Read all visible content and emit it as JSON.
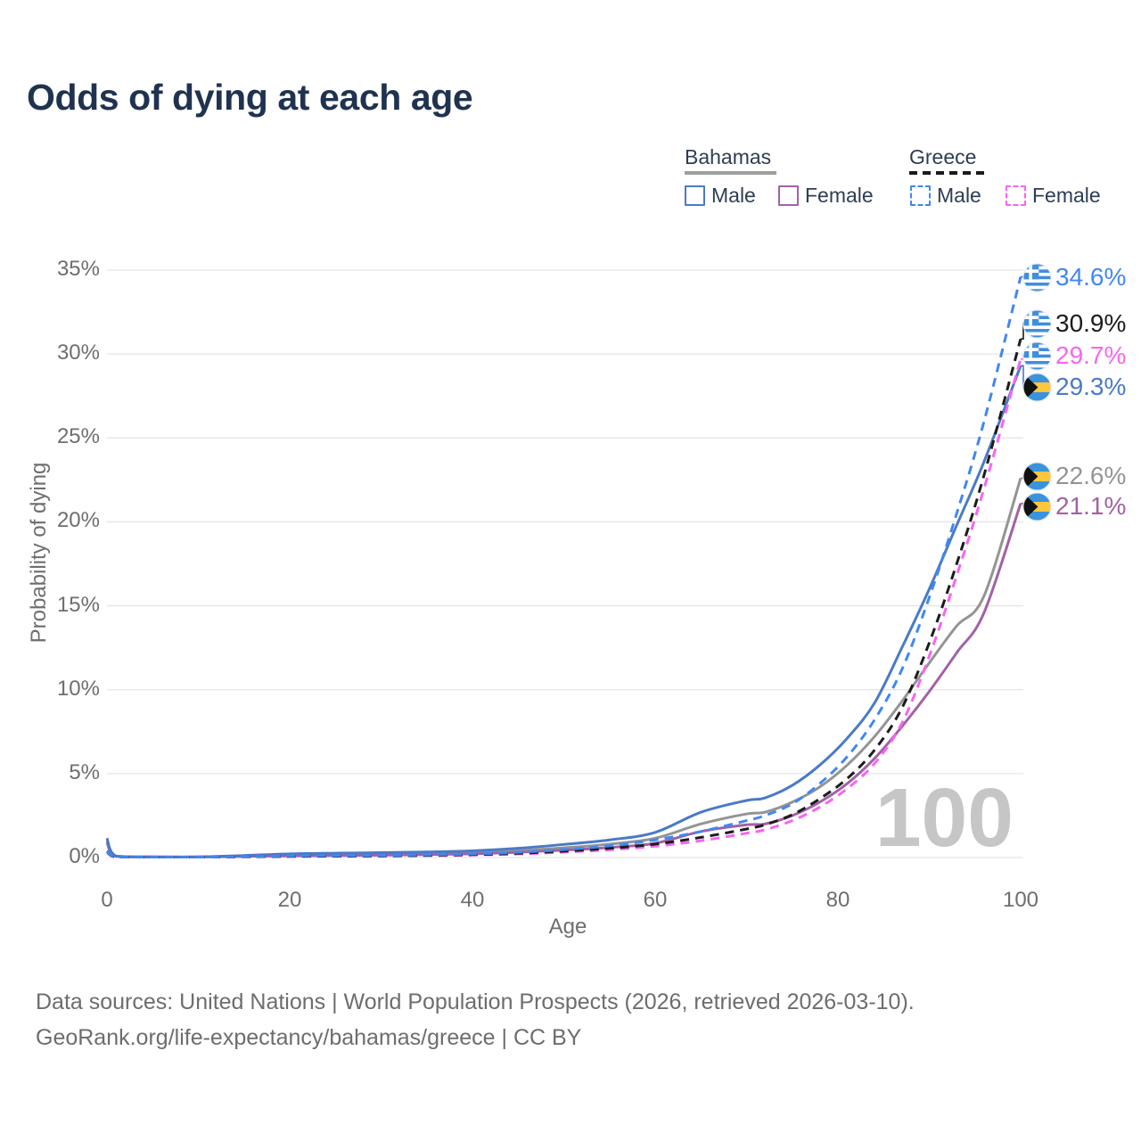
{
  "title": "Odds of dying at each age",
  "watermark": "100",
  "legend": {
    "groups": [
      {
        "name": "Bahamas",
        "line_style": "solid",
        "underline_color": "#9e9e9e",
        "items": [
          {
            "label": "Male",
            "color": "#4a7ac7"
          },
          {
            "label": "Female",
            "color": "#a261a6"
          }
        ]
      },
      {
        "name": "Greece",
        "line_style": "dashed",
        "underline_color": "#1a1a1a",
        "items": [
          {
            "label": "Male",
            "color": "#4187f2"
          },
          {
            "label": "Female",
            "color": "#f765f3"
          }
        ]
      }
    ]
  },
  "y_axis": {
    "label": "Probability of dying",
    "ticks": [
      {
        "label": "0%",
        "pct": 0
      },
      {
        "label": "5%",
        "pct": 5
      },
      {
        "label": "10%",
        "pct": 10
      },
      {
        "label": "15%",
        "pct": 15
      },
      {
        "label": "20%",
        "pct": 20
      },
      {
        "label": "25%",
        "pct": 25
      },
      {
        "label": "30%",
        "pct": 30
      },
      {
        "label": "35%",
        "pct": 35
      }
    ]
  },
  "x_axis": {
    "label": "Age",
    "ticks": [
      {
        "label": "0",
        "age": 0
      },
      {
        "label": "20",
        "age": 20
      },
      {
        "label": "40",
        "age": 40
      },
      {
        "label": "60",
        "age": 60
      },
      {
        "label": "80",
        "age": 80
      },
      {
        "label": "100",
        "age": 100
      }
    ]
  },
  "footer": {
    "line1": "Data sources: United Nations | World Population Prospects (2026, retrieved 2026-03-10).",
    "line2": "GeoRank.org/life-expectancy/bahamas/greece | CC BY"
  },
  "chart_data": {
    "type": "line",
    "title": "Odds of dying at each age",
    "xlabel": "Age",
    "ylabel": "Probability of dying",
    "xlim": [
      0,
      100
    ],
    "ylim_pct": [
      0,
      35
    ],
    "grid": "horizontal",
    "legend_position": "top-right",
    "series": [
      {
        "id": "bahamas_total",
        "name": "Bahamas (both sexes)",
        "country": "Bahamas",
        "sex": "total",
        "color": "#949494",
        "dash": false,
        "flag": "bahamas",
        "end_label": "22.6%",
        "end_value_pct": 22.6,
        "points": [
          [
            0,
            1.0
          ],
          [
            1,
            0.08
          ],
          [
            5,
            0.04
          ],
          [
            10,
            0.04
          ],
          [
            15,
            0.09
          ],
          [
            20,
            0.16
          ],
          [
            25,
            0.19
          ],
          [
            30,
            0.21
          ],
          [
            35,
            0.24
          ],
          [
            40,
            0.3
          ],
          [
            45,
            0.42
          ],
          [
            50,
            0.58
          ],
          [
            55,
            0.8
          ],
          [
            60,
            1.15
          ],
          [
            65,
            2.0
          ],
          [
            70,
            2.6
          ],
          [
            72,
            2.7
          ],
          [
            75,
            3.3
          ],
          [
            78,
            4.2
          ],
          [
            81,
            5.5
          ],
          [
            84,
            7.2
          ],
          [
            87,
            9.3
          ],
          [
            90,
            11.6
          ],
          [
            93,
            13.8
          ],
          [
            96,
            15.6
          ],
          [
            100,
            22.6
          ]
        ]
      },
      {
        "id": "bahamas_female",
        "name": "Bahamas — Female",
        "country": "Bahamas",
        "sex": "female",
        "color": "#a261a6",
        "dash": false,
        "flag": "bahamas",
        "end_label": "21.1%",
        "end_value_pct": 21.1,
        "points": [
          [
            0,
            0.9
          ],
          [
            1,
            0.07
          ],
          [
            5,
            0.03
          ],
          [
            10,
            0.03
          ],
          [
            15,
            0.07
          ],
          [
            20,
            0.1
          ],
          [
            25,
            0.12
          ],
          [
            30,
            0.14
          ],
          [
            35,
            0.17
          ],
          [
            40,
            0.22
          ],
          [
            45,
            0.31
          ],
          [
            50,
            0.44
          ],
          [
            55,
            0.6
          ],
          [
            60,
            0.85
          ],
          [
            65,
            1.55
          ],
          [
            70,
            1.95
          ],
          [
            72,
            2.0
          ],
          [
            75,
            2.5
          ],
          [
            78,
            3.3
          ],
          [
            81,
            4.4
          ],
          [
            84,
            5.9
          ],
          [
            87,
            7.8
          ],
          [
            90,
            9.9
          ],
          [
            93,
            12.2
          ],
          [
            96,
            14.6
          ],
          [
            100,
            21.1
          ]
        ]
      },
      {
        "id": "bahamas_male",
        "name": "Bahamas — Male",
        "country": "Bahamas",
        "sex": "male",
        "color": "#4a7ac7",
        "dash": false,
        "flag": "bahamas",
        "end_label": "29.3%",
        "end_value_pct": 29.3,
        "points": [
          [
            0,
            1.15
          ],
          [
            1,
            0.09
          ],
          [
            5,
            0.04
          ],
          [
            10,
            0.04
          ],
          [
            15,
            0.12
          ],
          [
            20,
            0.22
          ],
          [
            25,
            0.26
          ],
          [
            30,
            0.29
          ],
          [
            35,
            0.33
          ],
          [
            40,
            0.4
          ],
          [
            45,
            0.55
          ],
          [
            50,
            0.78
          ],
          [
            55,
            1.05
          ],
          [
            60,
            1.5
          ],
          [
            65,
            2.7
          ],
          [
            70,
            3.4
          ],
          [
            72,
            3.55
          ],
          [
            75,
            4.3
          ],
          [
            78,
            5.5
          ],
          [
            81,
            7.1
          ],
          [
            84,
            9.2
          ],
          [
            87,
            12.5
          ],
          [
            90,
            16.0
          ],
          [
            93,
            19.8
          ],
          [
            96,
            23.6
          ],
          [
            100,
            29.3
          ]
        ]
      },
      {
        "id": "greece_female",
        "name": "Greece — Female",
        "country": "Greece",
        "sex": "female",
        "color": "#f765f3",
        "dash": true,
        "flag": "greece",
        "end_label": "29.7%",
        "end_value_pct": 29.7,
        "points": [
          [
            0,
            0.33
          ],
          [
            1,
            0.025
          ],
          [
            5,
            0.015
          ],
          [
            10,
            0.015
          ],
          [
            15,
            0.04
          ],
          [
            20,
            0.06
          ],
          [
            25,
            0.08
          ],
          [
            30,
            0.09
          ],
          [
            35,
            0.11
          ],
          [
            40,
            0.15
          ],
          [
            45,
            0.21
          ],
          [
            50,
            0.32
          ],
          [
            55,
            0.46
          ],
          [
            60,
            0.68
          ],
          [
            65,
            1.0
          ],
          [
            70,
            1.45
          ],
          [
            72,
            1.65
          ],
          [
            75,
            2.2
          ],
          [
            78,
            3.0
          ],
          [
            81,
            4.1
          ],
          [
            84,
            5.6
          ],
          [
            87,
            8.0
          ],
          [
            90,
            12.0
          ],
          [
            93,
            16.8
          ],
          [
            96,
            22.0
          ],
          [
            100,
            29.7
          ]
        ]
      },
      {
        "id": "greece_total",
        "name": "Greece (both sexes)",
        "country": "Greece",
        "sex": "total",
        "color": "#1c1c1c",
        "dash": true,
        "flag": "greece",
        "end_label": "30.9%",
        "end_value_pct": 30.9,
        "points": [
          [
            0,
            0.36
          ],
          [
            1,
            0.03
          ],
          [
            5,
            0.015
          ],
          [
            10,
            0.015
          ],
          [
            15,
            0.045
          ],
          [
            20,
            0.07
          ],
          [
            25,
            0.085
          ],
          [
            30,
            0.1
          ],
          [
            35,
            0.13
          ],
          [
            40,
            0.17
          ],
          [
            45,
            0.25
          ],
          [
            50,
            0.38
          ],
          [
            55,
            0.55
          ],
          [
            60,
            0.8
          ],
          [
            65,
            1.2
          ],
          [
            70,
            1.7
          ],
          [
            72,
            1.95
          ],
          [
            75,
            2.55
          ],
          [
            78,
            3.5
          ],
          [
            81,
            4.7
          ],
          [
            84,
            6.4
          ],
          [
            87,
            8.9
          ],
          [
            90,
            12.8
          ],
          [
            93,
            17.5
          ],
          [
            96,
            22.8
          ],
          [
            100,
            30.9
          ]
        ]
      },
      {
        "id": "greece_male",
        "name": "Greece — Male",
        "country": "Greece",
        "sex": "male",
        "color": "#4187f2",
        "dash": true,
        "flag": "greece",
        "end_label": "34.6%",
        "end_value_pct": 34.6,
        "points": [
          [
            0,
            0.4
          ],
          [
            1,
            0.035
          ],
          [
            5,
            0.02
          ],
          [
            10,
            0.02
          ],
          [
            15,
            0.055
          ],
          [
            20,
            0.09
          ],
          [
            25,
            0.11
          ],
          [
            30,
            0.13
          ],
          [
            35,
            0.16
          ],
          [
            40,
            0.21
          ],
          [
            45,
            0.31
          ],
          [
            50,
            0.47
          ],
          [
            55,
            0.7
          ],
          [
            60,
            1.05
          ],
          [
            65,
            1.55
          ],
          [
            70,
            2.2
          ],
          [
            72,
            2.5
          ],
          [
            75,
            3.2
          ],
          [
            78,
            4.4
          ],
          [
            81,
            6.0
          ],
          [
            84,
            8.2
          ],
          [
            87,
            11.2
          ],
          [
            90,
            15.5
          ],
          [
            93,
            20.5
          ],
          [
            96,
            26.0
          ],
          [
            100,
            34.6
          ]
        ]
      }
    ]
  }
}
